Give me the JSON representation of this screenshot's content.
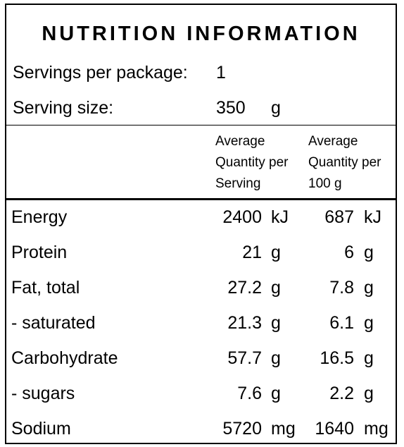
{
  "title": "NUTRITION INFORMATION",
  "servings": {
    "label": "Servings per package:",
    "value": 1
  },
  "serving_size": {
    "label": "Serving size:",
    "value": 350,
    "unit": "g"
  },
  "columns": [
    [
      "Average",
      "Quantity per",
      "Serving"
    ],
    [
      "Average",
      "Quantity per",
      "100 g"
    ]
  ],
  "rows": [
    {
      "label": "Energy",
      "per_serving": 2400,
      "per_serving_unit": "kJ",
      "per_100g": 687,
      "per_100g_unit": "kJ"
    },
    {
      "label": "Protein",
      "per_serving": 21,
      "per_serving_unit": "g",
      "per_100g": 6,
      "per_100g_unit": "g"
    },
    {
      "label": "Fat, total",
      "per_serving": 27.2,
      "per_serving_unit": "g",
      "per_100g": 7.8,
      "per_100g_unit": "g"
    },
    {
      "label": "- saturated",
      "per_serving": 21.3,
      "per_serving_unit": "g",
      "per_100g": 6.1,
      "per_100g_unit": "g"
    },
    {
      "label": "Carbohydrate",
      "per_serving": 57.7,
      "per_serving_unit": "g",
      "per_100g": 16.5,
      "per_100g_unit": "g"
    },
    {
      "label": "- sugars",
      "per_serving": 7.6,
      "per_serving_unit": "g",
      "per_100g": 2.2,
      "per_100g_unit": "g"
    },
    {
      "label": "Sodium",
      "per_serving": 5720,
      "per_serving_unit": "mg",
      "per_100g": 1640,
      "per_100g_unit": "mg"
    }
  ]
}
